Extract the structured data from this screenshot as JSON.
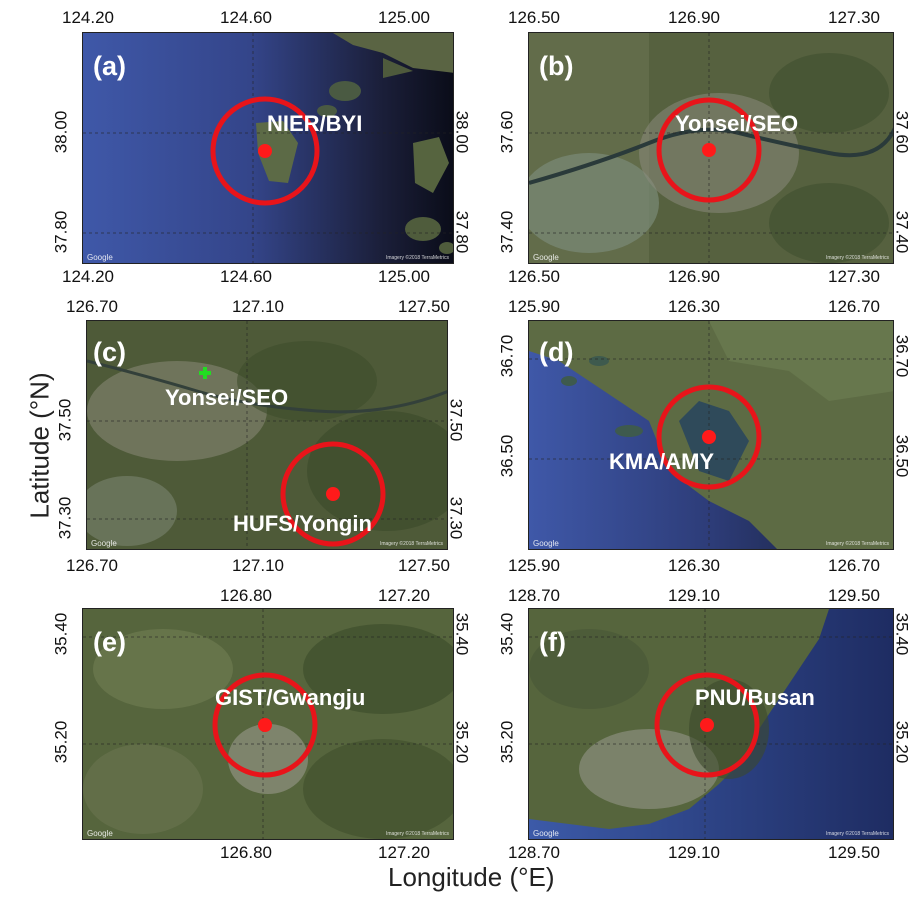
{
  "figure": {
    "ylabel": "Latitude (°N)",
    "xlabel": "Longitude (°E)",
    "google_label": "Google",
    "attribution": "Imagery ©2018 TerraMetrics"
  },
  "panels": [
    {
      "id": "a",
      "label": "(a)",
      "site": "NIER/BYI",
      "theme": "sea",
      "top_ticks": [
        "124.20",
        "124.60",
        "125.00"
      ],
      "bottom_ticks": [
        "124.20",
        "124.60",
        "125.00"
      ],
      "left_ticks": [
        "38.00",
        "37.80"
      ],
      "right_ticks": [
        "38.00",
        "37.80"
      ]
    },
    {
      "id": "b",
      "label": "(b)",
      "site": "Yonsei/SEO",
      "theme": "land",
      "top_ticks": [
        "126.50",
        "126.90",
        "127.30"
      ],
      "bottom_ticks": [
        "126.50",
        "126.90",
        "127.30"
      ],
      "left_ticks": [
        "37.60",
        "37.40"
      ],
      "right_ticks": [
        "37.60",
        "37.40"
      ]
    },
    {
      "id": "c",
      "label": "(c)",
      "site": "HUFS/Yongin",
      "theme": "land",
      "extra_site": "Yonsei/SEO",
      "top_ticks": [
        "126.70",
        "127.10",
        "127.50"
      ],
      "bottom_ticks": [
        "126.70",
        "127.10",
        "127.50"
      ],
      "left_ticks": [
        "37.50",
        "37.30"
      ],
      "right_ticks": [
        "37.50",
        "37.30"
      ]
    },
    {
      "id": "d",
      "label": "(d)",
      "site": "KMA/AMY",
      "theme": "coast",
      "top_ticks": [
        "125.90",
        "126.30",
        "126.70"
      ],
      "bottom_ticks": [
        "125.90",
        "126.30",
        "126.70"
      ],
      "left_ticks": [
        "36.70",
        "36.50"
      ],
      "right_ticks": [
        "36.70",
        "36.50"
      ]
    },
    {
      "id": "e",
      "label": "(e)",
      "site": "GIST/Gwangju",
      "theme": "land",
      "top_ticks": [
        "126.80",
        "127.20"
      ],
      "bottom_ticks": [
        "126.80",
        "127.20"
      ],
      "left_ticks": [
        "35.40",
        "35.20"
      ],
      "right_ticks": [
        "35.40",
        "35.20"
      ]
    },
    {
      "id": "f",
      "label": "(f)",
      "site": "PNU/Busan",
      "theme": "busan",
      "top_ticks": [
        "128.70",
        "129.10",
        "129.50"
      ],
      "bottom_ticks": [
        "128.70",
        "129.10",
        "129.50"
      ],
      "left_ticks": [
        "35.40",
        "35.20"
      ],
      "right_ticks": [
        "35.40",
        "35.20"
      ]
    }
  ],
  "colors": {
    "circle": "#e8141a",
    "marker": "#ff1a1a",
    "secondary_marker": "#22dd22",
    "sea": "#3a4f9a",
    "land": "#4b5a3a"
  }
}
